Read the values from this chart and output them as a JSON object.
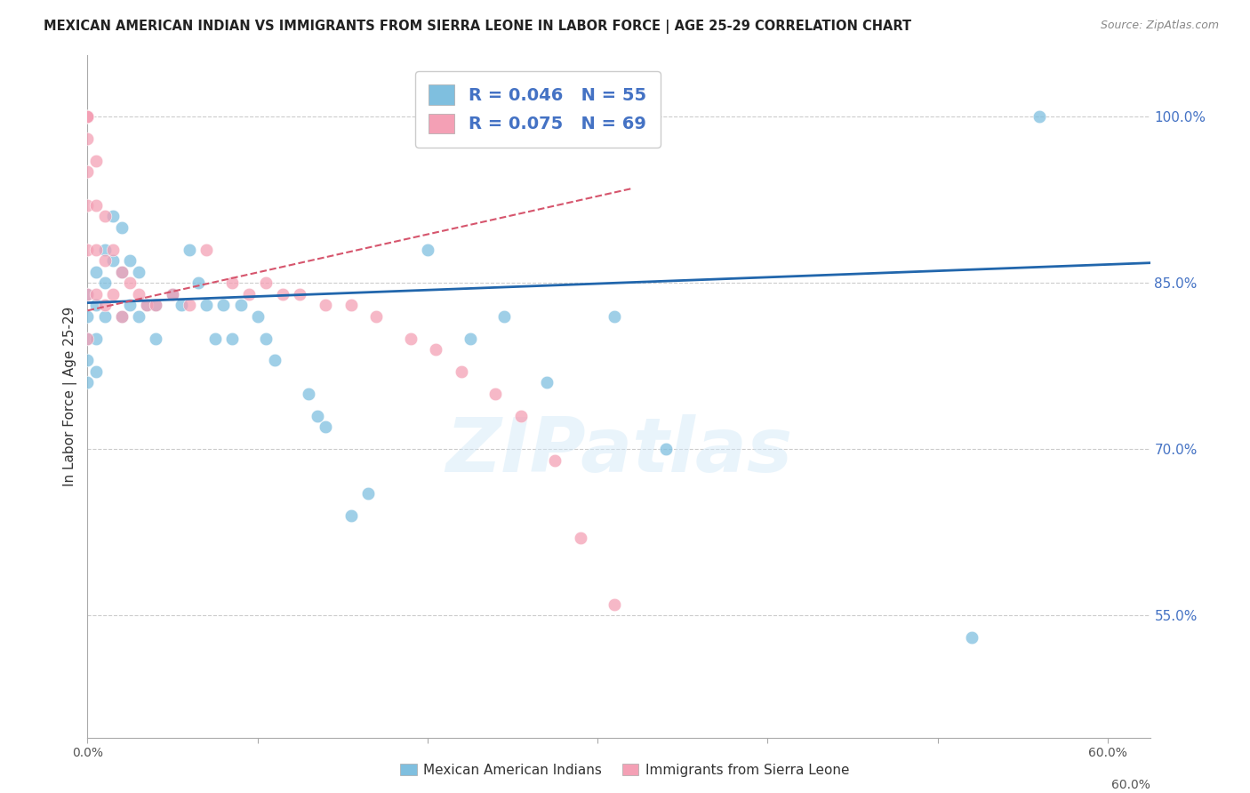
{
  "title": "MEXICAN AMERICAN INDIAN VS IMMIGRANTS FROM SIERRA LEONE IN LABOR FORCE | AGE 25-29 CORRELATION CHART",
  "source": "Source: ZipAtlas.com",
  "ylabel": "In Labor Force | Age 25-29",
  "yticks": [
    0.55,
    0.7,
    0.85,
    1.0
  ],
  "ytick_labels": [
    "55.0%",
    "70.0%",
    "85.0%",
    "100.0%"
  ],
  "xticks": [
    0.0,
    0.1,
    0.2,
    0.3,
    0.4,
    0.5,
    0.6
  ],
  "xtick_labels": [
    "0.0%",
    "",
    "",
    "",
    "",
    "",
    "60.0%"
  ],
  "xlim": [
    0.0,
    0.625
  ],
  "ylim": [
    0.44,
    1.055
  ],
  "watermark": "ZIPatlas",
  "legend_blue_r": "R = 0.046",
  "legend_blue_n": "N = 55",
  "legend_pink_r": "R = 0.075",
  "legend_pink_n": "N = 69",
  "blue_color": "#7fbfdf",
  "pink_color": "#f4a0b5",
  "trend_blue_color": "#2166ac",
  "trend_pink_color": "#d6556d",
  "blue_dots_x": [
    0.0,
    0.0,
    0.0,
    0.0,
    0.0,
    0.005,
    0.005,
    0.005,
    0.005,
    0.01,
    0.01,
    0.01,
    0.015,
    0.015,
    0.02,
    0.02,
    0.02,
    0.025,
    0.025,
    0.03,
    0.03,
    0.035,
    0.04,
    0.04,
    0.05,
    0.055,
    0.06,
    0.065,
    0.07,
    0.075,
    0.08,
    0.085,
    0.09,
    0.1,
    0.105,
    0.11,
    0.13,
    0.135,
    0.14,
    0.155,
    0.165,
    0.2,
    0.225,
    0.245,
    0.27,
    0.31,
    0.34,
    0.52,
    0.56
  ],
  "blue_dots_y": [
    0.84,
    0.82,
    0.8,
    0.78,
    0.76,
    0.86,
    0.83,
    0.8,
    0.77,
    0.88,
    0.85,
    0.82,
    0.91,
    0.87,
    0.9,
    0.86,
    0.82,
    0.87,
    0.83,
    0.86,
    0.82,
    0.83,
    0.83,
    0.8,
    0.84,
    0.83,
    0.88,
    0.85,
    0.83,
    0.8,
    0.83,
    0.8,
    0.83,
    0.82,
    0.8,
    0.78,
    0.75,
    0.73,
    0.72,
    0.64,
    0.66,
    0.88,
    0.8,
    0.82,
    0.76,
    0.82,
    0.7,
    0.53,
    1.0
  ],
  "pink_dots_x": [
    0.0,
    0.0,
    0.0,
    0.0,
    0.0,
    0.0,
    0.0,
    0.0,
    0.0,
    0.0,
    0.0,
    0.0,
    0.0,
    0.0,
    0.0,
    0.005,
    0.005,
    0.005,
    0.005,
    0.01,
    0.01,
    0.01,
    0.015,
    0.015,
    0.02,
    0.02,
    0.025,
    0.03,
    0.035,
    0.04,
    0.05,
    0.06,
    0.07,
    0.085,
    0.095,
    0.105,
    0.115,
    0.125,
    0.14,
    0.155,
    0.17,
    0.19,
    0.205,
    0.22,
    0.24,
    0.255,
    0.275,
    0.29,
    0.31
  ],
  "pink_dots_y": [
    1.0,
    1.0,
    1.0,
    1.0,
    1.0,
    1.0,
    1.0,
    1.0,
    1.0,
    0.98,
    0.95,
    0.92,
    0.88,
    0.84,
    0.8,
    0.96,
    0.92,
    0.88,
    0.84,
    0.91,
    0.87,
    0.83,
    0.88,
    0.84,
    0.86,
    0.82,
    0.85,
    0.84,
    0.83,
    0.83,
    0.84,
    0.83,
    0.88,
    0.85,
    0.84,
    0.85,
    0.84,
    0.84,
    0.83,
    0.83,
    0.82,
    0.8,
    0.79,
    0.77,
    0.75,
    0.73,
    0.69,
    0.62,
    0.56
  ],
  "blue_trend_x": [
    0.0,
    0.625
  ],
  "blue_trend_y": [
    0.832,
    0.868
  ],
  "pink_trend_x": [
    0.0,
    0.32
  ],
  "pink_trend_y": [
    0.825,
    0.935
  ]
}
